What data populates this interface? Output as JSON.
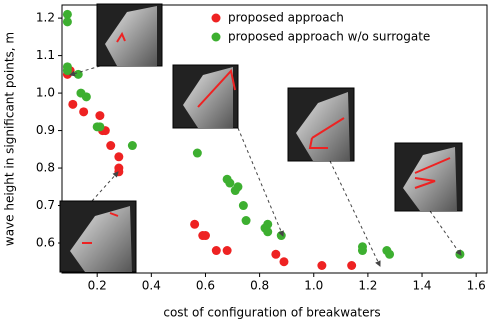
{
  "chart_data": {
    "type": "scatter",
    "xlabel": "cost of configuration of breakwaters",
    "ylabel": "wave height in significant points, m",
    "xlim": [
      0.07,
      1.64
    ],
    "ylim": [
      0.52,
      1.235
    ],
    "xticks": [
      0.2,
      0.4,
      0.6,
      0.8,
      {
        "value": 1,
        "label": "1.0"
      },
      1.2,
      1.4,
      1.6
    ],
    "yticks": [
      0.6,
      0.7,
      0.8,
      0.9,
      {
        "value": 1,
        "label": "1.0"
      },
      1.1,
      1.2
    ],
    "grid": false,
    "legend": "upper right",
    "series": [
      {
        "name": "proposed approach",
        "color": "#ee2222",
        "x": [
          0.09,
          0.1,
          0.11,
          0.15,
          0.21,
          0.22,
          0.23,
          0.25,
          0.28,
          0.28,
          0.28,
          0.56,
          0.59,
          0.6,
          0.64,
          0.68,
          0.86,
          0.89,
          1.03,
          1.14
        ],
        "values": [
          1.05,
          1.06,
          0.97,
          0.95,
          0.94,
          0.9,
          0.9,
          0.86,
          0.83,
          0.8,
          0.79,
          0.65,
          0.62,
          0.62,
          0.58,
          0.58,
          0.57,
          0.55,
          0.54,
          0.54
        ]
      },
      {
        "name": "proposed approach w/o surrogate",
        "color": "#3daf30",
        "x": [
          0.09,
          0.09,
          0.09,
          0.09,
          0.13,
          0.14,
          0.16,
          0.2,
          0.21,
          0.33,
          0.57,
          0.68,
          0.69,
          0.71,
          0.72,
          0.74,
          0.75,
          0.82,
          0.83,
          0.83,
          0.88,
          1.18,
          1.18,
          1.27,
          1.28,
          1.54
        ],
        "values": [
          1.21,
          1.19,
          1.07,
          1.06,
          1.05,
          1.0,
          0.99,
          0.91,
          0.91,
          0.86,
          0.84,
          0.77,
          0.76,
          0.74,
          0.75,
          0.7,
          0.66,
          0.64,
          0.65,
          0.63,
          0.62,
          0.59,
          0.58,
          0.58,
          0.57,
          0.57
        ]
      }
    ]
  }
}
